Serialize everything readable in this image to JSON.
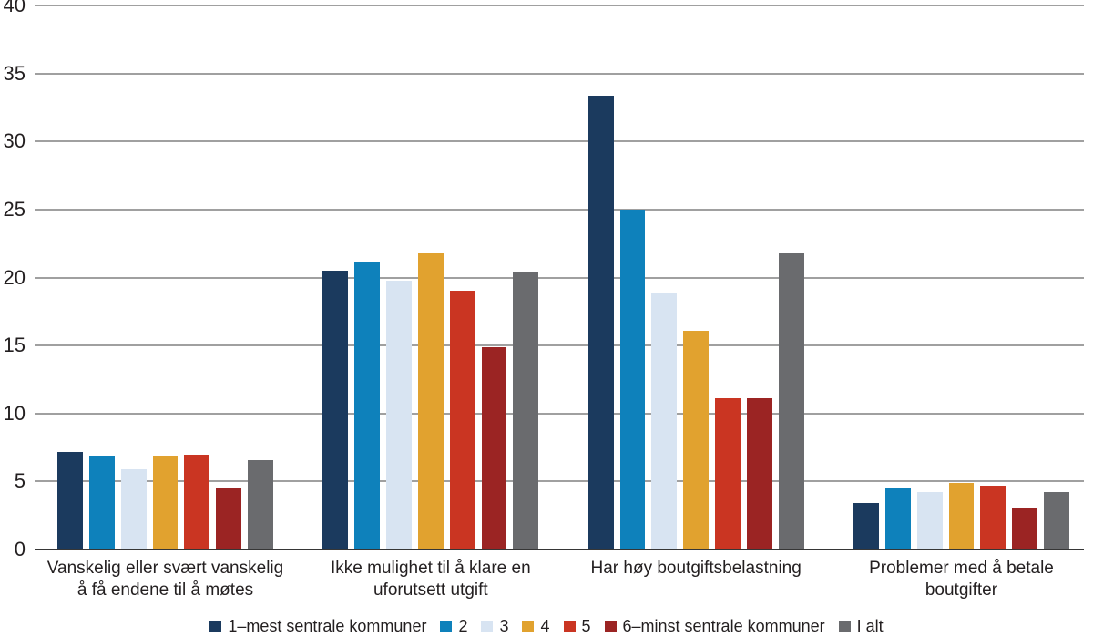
{
  "chart_data": {
    "type": "bar",
    "title": "",
    "xlabel": "",
    "ylabel": "",
    "grid": true,
    "legend_position": "bottom",
    "y_axis": {
      "min": 0,
      "max": 40,
      "step": 5,
      "ticks": [
        "0",
        "5",
        "10",
        "15",
        "20",
        "25",
        "30",
        "35",
        "40"
      ]
    },
    "categories": [
      "Vanskelig eller svært vanskelig å få endene til å møtes",
      "Ikke mulighet til å klare en uforutsett utgift",
      "Har høy boutgiftsbelastning",
      "Problemer med å betale boutgifter"
    ],
    "category_lines": [
      [
        "Vanskelig eller svært vanskelig",
        "å få endene til å møtes"
      ],
      [
        "Ikke mulighet til å klare en",
        "uforutsett utgift"
      ],
      [
        "Har høy boutgiftsbelastning"
      ],
      [
        "Problemer med å betale",
        "boutgifter"
      ]
    ],
    "series": [
      {
        "name": "1–mest sentrale kommuner",
        "color": "#1b3a5e",
        "values": [
          7.2,
          20.5,
          33.4,
          3.4
        ]
      },
      {
        "name": "2",
        "color": "#0e81bb",
        "values": [
          6.9,
          21.2,
          25.0,
          4.5
        ]
      },
      {
        "name": "3",
        "color": "#d8e4f2",
        "values": [
          5.9,
          19.8,
          18.8,
          4.2
        ]
      },
      {
        "name": "4",
        "color": "#e1a22f",
        "values": [
          6.9,
          21.8,
          16.1,
          4.9
        ]
      },
      {
        "name": "5",
        "color": "#ca3522",
        "values": [
          7.0,
          19.0,
          11.1,
          4.7
        ]
      },
      {
        "name": "6–minst sentrale kommuner",
        "color": "#9b2423",
        "values": [
          4.5,
          14.9,
          11.1,
          3.1
        ]
      },
      {
        "name": "I alt",
        "color": "#6a6b6e",
        "values": [
          6.6,
          20.4,
          21.8,
          4.2
        ]
      }
    ],
    "colors": {
      "gridline": "#a0a0a0",
      "baseline": "#363636",
      "text": "#231f20",
      "background": "#ffffff"
    }
  }
}
